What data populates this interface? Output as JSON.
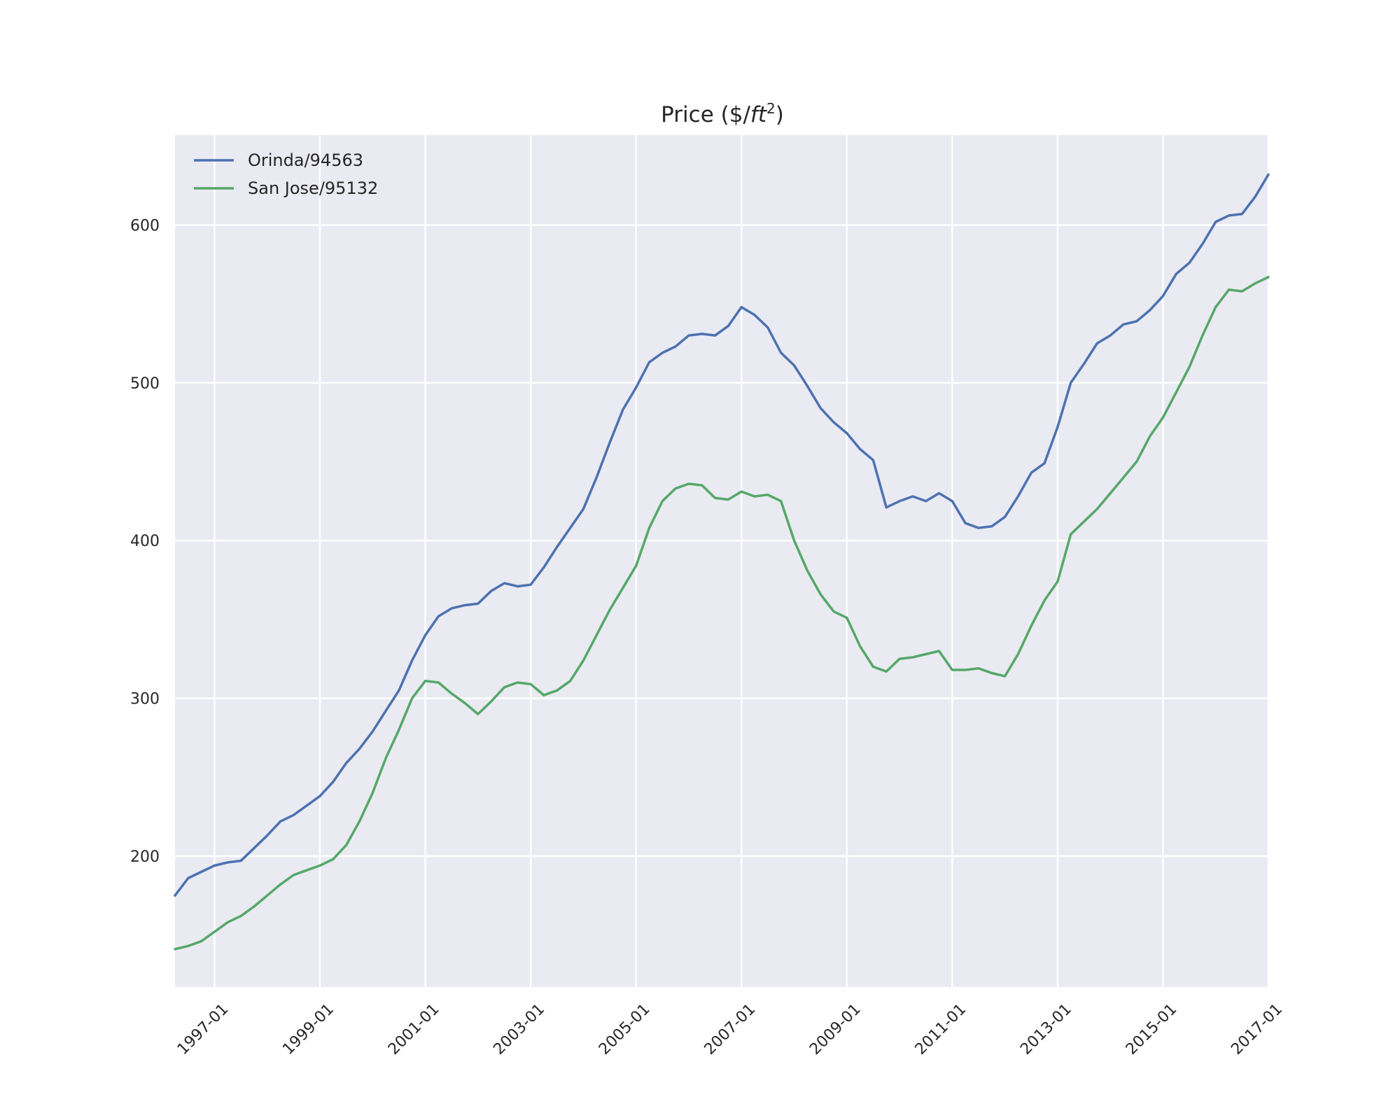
{
  "chart_data": {
    "type": "line",
    "title_text": "Price ($/",
    "title_unit": "ft",
    "title_exp": "2",
    "title_close": ")",
    "xlabel": "",
    "ylabel": "",
    "xlim": [
      "1996-04",
      "2017-01"
    ],
    "ylim": [
      117,
      657
    ],
    "x_ticks": [
      "1997-01",
      "1999-01",
      "2001-01",
      "2003-01",
      "2005-01",
      "2007-01",
      "2009-01",
      "2011-01",
      "2013-01",
      "2015-01",
      "2017-01"
    ],
    "y_ticks": [
      200,
      300,
      400,
      500,
      600
    ],
    "grid": true,
    "background": "#EAEAF2",
    "legend_position": "top-left",
    "x_format": "year-month",
    "series": [
      {
        "name": "Orinda/94563",
        "color": "#4C72B0",
        "points": [
          [
            "1996-04",
            175
          ],
          [
            "1996-07",
            186
          ],
          [
            "1996-10",
            190
          ],
          [
            "1997-01",
            194
          ],
          [
            "1997-04",
            196
          ],
          [
            "1997-07",
            197
          ],
          [
            "1997-10",
            205
          ],
          [
            "1998-01",
            213
          ],
          [
            "1998-04",
            222
          ],
          [
            "1998-07",
            226
          ],
          [
            "1998-10",
            232
          ],
          [
            "1999-01",
            238
          ],
          [
            "1999-04",
            247
          ],
          [
            "1999-07",
            259
          ],
          [
            "1999-10",
            268
          ],
          [
            "2000-01",
            279
          ],
          [
            "2000-04",
            292
          ],
          [
            "2000-07",
            305
          ],
          [
            "2000-10",
            324
          ],
          [
            "2001-01",
            340
          ],
          [
            "2001-04",
            352
          ],
          [
            "2001-07",
            357
          ],
          [
            "2001-10",
            359
          ],
          [
            "2002-01",
            360
          ],
          [
            "2002-04",
            368
          ],
          [
            "2002-07",
            373
          ],
          [
            "2002-10",
            371
          ],
          [
            "2003-01",
            372
          ],
          [
            "2003-04",
            383
          ],
          [
            "2003-07",
            396
          ],
          [
            "2003-10",
            408
          ],
          [
            "2004-01",
            420
          ],
          [
            "2004-04",
            440
          ],
          [
            "2004-07",
            462
          ],
          [
            "2004-10",
            483
          ],
          [
            "2005-01",
            497
          ],
          [
            "2005-04",
            513
          ],
          [
            "2005-07",
            519
          ],
          [
            "2005-10",
            523
          ],
          [
            "2006-01",
            530
          ],
          [
            "2006-04",
            531
          ],
          [
            "2006-07",
            530
          ],
          [
            "2006-10",
            536
          ],
          [
            "2007-01",
            548
          ],
          [
            "2007-04",
            543
          ],
          [
            "2007-07",
            535
          ],
          [
            "2007-10",
            519
          ],
          [
            "2008-01",
            511
          ],
          [
            "2008-04",
            498
          ],
          [
            "2008-07",
            484
          ],
          [
            "2008-10",
            475
          ],
          [
            "2009-01",
            468
          ],
          [
            "2009-04",
            458
          ],
          [
            "2009-07",
            451
          ],
          [
            "2009-10",
            421
          ],
          [
            "2010-01",
            425
          ],
          [
            "2010-04",
            428
          ],
          [
            "2010-07",
            425
          ],
          [
            "2010-10",
            430
          ],
          [
            "2011-01",
            425
          ],
          [
            "2011-04",
            411
          ],
          [
            "2011-07",
            408
          ],
          [
            "2011-10",
            409
          ],
          [
            "2012-01",
            415
          ],
          [
            "2012-04",
            428
          ],
          [
            "2012-07",
            443
          ],
          [
            "2012-10",
            449
          ],
          [
            "2013-01",
            472
          ],
          [
            "2013-04",
            500
          ],
          [
            "2013-07",
            512
          ],
          [
            "2013-10",
            525
          ],
          [
            "2014-01",
            530
          ],
          [
            "2014-04",
            537
          ],
          [
            "2014-07",
            539
          ],
          [
            "2014-10",
            546
          ],
          [
            "2015-01",
            555
          ],
          [
            "2015-04",
            569
          ],
          [
            "2015-07",
            576
          ],
          [
            "2015-10",
            588
          ],
          [
            "2016-01",
            602
          ],
          [
            "2016-04",
            606
          ],
          [
            "2016-07",
            607
          ],
          [
            "2016-10",
            618
          ],
          [
            "2017-01",
            632
          ]
        ]
      },
      {
        "name": "San Jose/95132",
        "color": "#55A868",
        "points": [
          [
            "1996-04",
            141
          ],
          [
            "1996-07",
            143
          ],
          [
            "1996-10",
            146
          ],
          [
            "1997-01",
            152
          ],
          [
            "1997-04",
            158
          ],
          [
            "1997-07",
            162
          ],
          [
            "1997-10",
            168
          ],
          [
            "1998-01",
            175
          ],
          [
            "1998-04",
            182
          ],
          [
            "1998-07",
            188
          ],
          [
            "1998-10",
            191
          ],
          [
            "1999-01",
            194
          ],
          [
            "1999-04",
            198
          ],
          [
            "1999-07",
            207
          ],
          [
            "1999-10",
            222
          ],
          [
            "2000-01",
            240
          ],
          [
            "2000-04",
            262
          ],
          [
            "2000-07",
            280
          ],
          [
            "2000-10",
            300
          ],
          [
            "2001-01",
            311
          ],
          [
            "2001-04",
            310
          ],
          [
            "2001-07",
            303
          ],
          [
            "2001-10",
            297
          ],
          [
            "2002-01",
            290
          ],
          [
            "2002-04",
            298
          ],
          [
            "2002-07",
            307
          ],
          [
            "2002-10",
            310
          ],
          [
            "2003-01",
            309
          ],
          [
            "2003-04",
            302
          ],
          [
            "2003-07",
            305
          ],
          [
            "2003-10",
            311
          ],
          [
            "2004-01",
            324
          ],
          [
            "2004-04",
            340
          ],
          [
            "2004-07",
            356
          ],
          [
            "2004-10",
            370
          ],
          [
            "2005-01",
            384
          ],
          [
            "2005-04",
            408
          ],
          [
            "2005-07",
            425
          ],
          [
            "2005-10",
            433
          ],
          [
            "2006-01",
            436
          ],
          [
            "2006-04",
            435
          ],
          [
            "2006-07",
            427
          ],
          [
            "2006-10",
            426
          ],
          [
            "2007-01",
            431
          ],
          [
            "2007-04",
            428
          ],
          [
            "2007-07",
            429
          ],
          [
            "2007-10",
            425
          ],
          [
            "2008-01",
            400
          ],
          [
            "2008-04",
            381
          ],
          [
            "2008-07",
            366
          ],
          [
            "2008-10",
            355
          ],
          [
            "2009-01",
            351
          ],
          [
            "2009-04",
            333
          ],
          [
            "2009-07",
            320
          ],
          [
            "2009-10",
            317
          ],
          [
            "2010-01",
            325
          ],
          [
            "2010-04",
            326
          ],
          [
            "2010-07",
            328
          ],
          [
            "2010-10",
            330
          ],
          [
            "2011-01",
            318
          ],
          [
            "2011-04",
            318
          ],
          [
            "2011-07",
            319
          ],
          [
            "2011-10",
            316
          ],
          [
            "2012-01",
            314
          ],
          [
            "2012-04",
            328
          ],
          [
            "2012-07",
            346
          ],
          [
            "2012-10",
            362
          ],
          [
            "2013-01",
            374
          ],
          [
            "2013-04",
            404
          ],
          [
            "2013-07",
            412
          ],
          [
            "2013-10",
            420
          ],
          [
            "2014-01",
            430
          ],
          [
            "2014-04",
            440
          ],
          [
            "2014-07",
            450
          ],
          [
            "2014-10",
            466
          ],
          [
            "2015-01",
            478
          ],
          [
            "2015-04",
            494
          ],
          [
            "2015-07",
            510
          ],
          [
            "2015-10",
            530
          ],
          [
            "2016-01",
            548
          ],
          [
            "2016-04",
            559
          ],
          [
            "2016-07",
            558
          ],
          [
            "2016-10",
            563
          ],
          [
            "2017-01",
            567
          ]
        ]
      }
    ]
  }
}
